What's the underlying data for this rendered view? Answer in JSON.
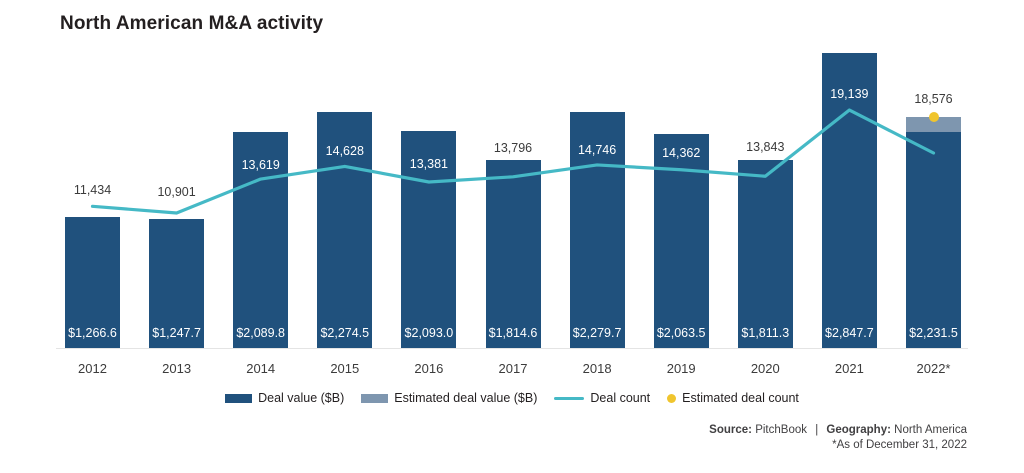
{
  "title": "North American M&A activity",
  "chart_data": {
    "type": "bar+line",
    "categories": [
      "2012",
      "2013",
      "2014",
      "2015",
      "2016",
      "2017",
      "2018",
      "2019",
      "2020",
      "2021",
      "2022*"
    ],
    "series": [
      {
        "name": "Deal value ($B)",
        "type": "bar",
        "color": "#20517D",
        "values": [
          1266.6,
          1247.7,
          2089.8,
          2274.5,
          2093.0,
          1814.6,
          2279.7,
          2063.5,
          1811.3,
          2847.7,
          2231.5
        ],
        "labels": [
          "$1,266.6",
          "$1,247.7",
          "$2,089.8",
          "$2,274.5",
          "$2,093.0",
          "$1,814.6",
          "$2,279.7",
          "$2,063.5",
          "$1,811.3",
          "$2,847.7",
          "$2,231.5"
        ]
      },
      {
        "name": "Estimated deal value ($B)",
        "type": "bar-top-segment",
        "color": "#7E96AF",
        "applies_to": "2022*"
      },
      {
        "name": "Deal count",
        "type": "line",
        "color": "#45B9C6",
        "values": [
          11434,
          10901,
          13619,
          14628,
          13381,
          13796,
          14746,
          14362,
          13843,
          19139
        ],
        "labels": [
          "11,434",
          "10,901",
          "13,619",
          "14,628",
          "13,381",
          "13,796",
          "14,746",
          "14,362",
          "13,843",
          "19,139"
        ]
      },
      {
        "name": "Estimated deal count",
        "type": "point",
        "color": "#F0C52E",
        "x": "2022*",
        "value": 18576,
        "label": "18,576"
      }
    ],
    "grid": false,
    "legend_position": "bottom-center",
    "value_axis_visible": false
  },
  "legend": {
    "items": [
      {
        "label": "Deal value ($B)",
        "swatch": "bar-dark"
      },
      {
        "label": "Estimated deal value ($B)",
        "swatch": "bar-light"
      },
      {
        "label": "Deal count",
        "swatch": "line"
      },
      {
        "label": "Estimated deal count",
        "swatch": "dot"
      }
    ]
  },
  "footer": {
    "source_label": "Source:",
    "source_value": "PitchBook",
    "divider": "|",
    "geography_label": "Geography:",
    "geography_value": "North America",
    "note": "*As of December 31, 2022"
  },
  "colors": {
    "deal_value": "#20517D",
    "estimated_deal_value": "#7E96AF",
    "deal_count_line": "#45B9C6",
    "estimated_deal_count": "#F0C52E",
    "text_dark": "#231F20",
    "count_label_dark": "#3b3b3b",
    "label_on_bar": "#FFFFFF"
  }
}
